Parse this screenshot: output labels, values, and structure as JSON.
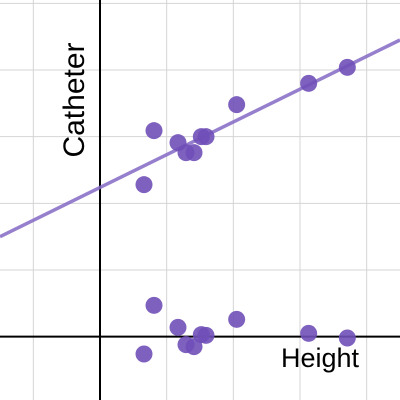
{
  "chart_data": {
    "type": "scatter",
    "xlabel": "Height",
    "ylabel": "Catheter",
    "xlim": [
      -1.5,
      4.5
    ],
    "ylim": [
      -0.95,
      5.05
    ],
    "xticks": [
      -1,
      0,
      1,
      2,
      3,
      4
    ],
    "yticks": [
      0,
      1,
      2,
      3,
      4,
      5
    ],
    "grid": true,
    "series": [
      {
        "color": "#7050b8",
        "x": [
          0.66,
          0.81,
          1.17,
          1.29,
          1.41,
          1.52,
          1.59,
          2.05,
          3.13,
          3.71
        ],
        "values": [
          2.28,
          3.09,
          2.91,
          2.76,
          2.76,
          3.0,
          3.0,
          3.48,
          3.8,
          4.04
        ]
      },
      {
        "color": "#7050b8",
        "x": [
          0.66,
          0.81,
          1.17,
          1.29,
          1.41,
          1.52,
          1.59,
          2.05,
          3.13,
          3.71
        ],
        "values": [
          -0.26,
          0.47,
          0.14,
          -0.12,
          -0.15,
          0.03,
          0.02,
          0.26,
          0.05,
          -0.02
        ]
      }
    ],
    "fit_line": {
      "color": "#8468c4",
      "x": [
        -1.5,
        4.5
      ],
      "values": [
        1.5,
        4.45
      ]
    }
  }
}
